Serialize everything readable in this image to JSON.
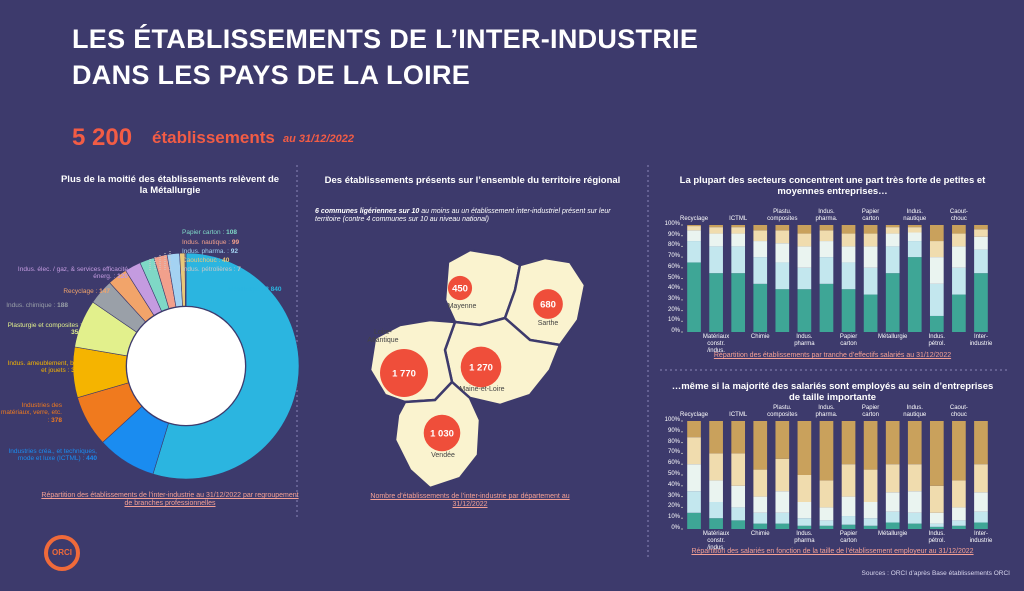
{
  "header": {
    "title_line1": "LES ÉTABLISSEMENTS DE L’INTER-INDUSTRIE",
    "title_line2": "DANS LES PAYS DE LA LOIRE",
    "count": "5 200",
    "count_unit": "établissements",
    "date": "au 31/12/2022"
  },
  "chart_data": [
    {
      "type": "pie",
      "title": "Plus de la moitié des établissements relèvent de la Métallurgie",
      "note": "Répartition des établissements de l’inter-industrie au 31/12/2022 par regroupement de branches professionnelles",
      "categories": [
        "Métallurgie :",
        "Industries créa., et techniques, mode et luxe (ICTML) :",
        "Industries des matériaux, verre, etc. :",
        "Indus. ameublement, bois et jouets :",
        "Plasturgie et composites :",
        "Indus. chimique :",
        "Recyclage :",
        "Indus. élec. / gaz, & services efficacité énerg. :",
        "Papier carton :",
        "Indus. nautique :",
        "Indus. pharma. :",
        "Caoutchouc :",
        "Indus. pétrolières :"
      ],
      "values": [
        2840,
        440,
        378,
        375,
        356,
        188,
        147,
        120,
        108,
        99,
        92,
        40,
        7
      ],
      "value_labels": [
        "2 840",
        "440",
        "378",
        "375",
        "356",
        "188",
        "147",
        "120",
        "108",
        "99",
        "92",
        "40",
        "7"
      ],
      "colors": [
        "#2bb5e0",
        "#1a8cf0",
        "#f07a1e",
        "#f5b400",
        "#e2f08c",
        "#9aa0a8",
        "#f2a46a",
        "#c49be0",
        "#7fd8c6",
        "#f2a08c",
        "#a4d2f2",
        "#e8c87a",
        "#c8c8c8"
      ]
    },
    {
      "type": "map",
      "title": "Des établissements présents sur l’ensemble du territoire régional",
      "subtitle_bold": "6 communes ligériennes sur 10",
      "subtitle": "au moins au un établissement inter-industriel présent sur leur territoire (contre 4 communes sur 10 au niveau national)",
      "note": "Nombre d’établissements de l’inter-industrie par département au 31/12/2022",
      "categories": [
        "Mayenne",
        "Sarthe",
        "Loire-\nAtlantique",
        "Maine-et-Loire",
        "Vendée"
      ],
      "values": [
        450,
        680,
        1770,
        1270,
        1030
      ],
      "value_labels": [
        "450",
        "680",
        "1 770",
        "1 270",
        "1 030"
      ],
      "color": "#ef4e3a"
    },
    {
      "type": "bar",
      "stacked": true,
      "title": "La plupart des secteurs concentrent une part très forte de petites et moyennes entreprises…",
      "note": "Répartition des établissements par tranche d’effectifs salariés au 31/12/2022",
      "categories": [
        "Recyclage",
        "Matériaux\nconstr. /indus.",
        "ICTML",
        "Chimie",
        "Plastu.\ncomposites",
        "Indus.\npharma",
        "Indus.\npharma.",
        "Papier\ncarton",
        "Papier\ncarton",
        "Métallurgie",
        "Indus.\nnautique",
        "Indus.\npétrol.",
        "Caout-\nchouc",
        "Inter-\nindustrie"
      ],
      "series": [
        {
          "color": "#3ea696",
          "values": [
            65,
            55,
            55,
            45,
            40,
            40,
            45,
            40,
            35,
            55,
            70,
            15,
            35,
            55
          ]
        },
        {
          "color": "#c3e7ee",
          "values": [
            20,
            25,
            25,
            25,
            25,
            20,
            25,
            25,
            25,
            25,
            15,
            30,
            25,
            22
          ]
        },
        {
          "color": "#eaf4f0",
          "values": [
            10,
            12,
            12,
            15,
            18,
            20,
            15,
            15,
            20,
            12,
            8,
            25,
            20,
            12
          ]
        },
        {
          "color": "#f0dcae",
          "values": [
            4,
            6,
            6,
            10,
            12,
            12,
            10,
            12,
            12,
            6,
            5,
            15,
            12,
            7
          ]
        },
        {
          "color": "#c9a15c",
          "values": [
            1,
            2,
            2,
            5,
            5,
            8,
            5,
            8,
            8,
            2,
            2,
            15,
            8,
            4
          ]
        }
      ],
      "ylim": [
        0,
        100
      ],
      "yticks": [
        {
          "value": 0,
          "label": "0%"
        },
        {
          "value": 10,
          "label": "10%"
        },
        {
          "value": 20,
          "label": "20%"
        },
        {
          "value": 30,
          "label": "30%"
        },
        {
          "value": 40,
          "label": "40%"
        },
        {
          "value": 50,
          "label": "50%"
        },
        {
          "value": 60,
          "label": "60%"
        },
        {
          "value": 70,
          "label": "70%"
        },
        {
          "value": 80,
          "label": "80%"
        },
        {
          "value": 90,
          "label": "90%"
        },
        {
          "value": 100,
          "label": "100%"
        }
      ],
      "grid": false
    },
    {
      "type": "bar",
      "stacked": true,
      "title": "…même si la majorité des salariés sont employés au sein d’entreprises de taille importante",
      "note": "Répartition des salariés en fonction de la taille de l’établissement employeur au 31/12/2022",
      "categories": [
        "Recyclage",
        "Matériaux\nconstr. /indus.",
        "ICTML",
        "Chimie",
        "Plastu.\ncomposites",
        "Indus.\npharma",
        "Indus.\npharma.",
        "Papier\ncarton",
        "Papier\ncarton",
        "Métallurgie",
        "Indus.\nnautique",
        "Indus.\npétrol.",
        "Caout-\nchouc",
        "Inter-\nindustrie"
      ],
      "series": [
        {
          "color": "#3ea696",
          "values": [
            15,
            10,
            8,
            5,
            5,
            3,
            3,
            4,
            3,
            6,
            5,
            2,
            3,
            6
          ]
        },
        {
          "color": "#c3e7ee",
          "values": [
            20,
            15,
            12,
            10,
            10,
            7,
            5,
            8,
            7,
            10,
            10,
            3,
            5,
            10
          ]
        },
        {
          "color": "#eaf4f0",
          "values": [
            25,
            20,
            20,
            15,
            20,
            15,
            12,
            18,
            15,
            18,
            20,
            10,
            12,
            18
          ]
        },
        {
          "color": "#f0dcae",
          "values": [
            25,
            25,
            30,
            25,
            30,
            25,
            25,
            30,
            30,
            26,
            25,
            25,
            25,
            26
          ]
        },
        {
          "color": "#c9a15c",
          "values": [
            15,
            30,
            30,
            45,
            35,
            50,
            55,
            40,
            45,
            40,
            40,
            60,
            55,
            40
          ]
        }
      ],
      "ylim": [
        0,
        100
      ],
      "yticks": [
        {
          "value": 0,
          "label": "0%"
        },
        {
          "value": 10,
          "label": "10%"
        },
        {
          "value": 20,
          "label": "20%"
        },
        {
          "value": 30,
          "label": "30%"
        },
        {
          "value": 40,
          "label": "40%"
        },
        {
          "value": 50,
          "label": "50%"
        },
        {
          "value": 60,
          "label": "60%"
        },
        {
          "value": 70,
          "label": "70%"
        },
        {
          "value": 80,
          "label": "80%"
        },
        {
          "value": 90,
          "label": "90%"
        },
        {
          "value": 100,
          "label": "100%"
        }
      ],
      "grid": false
    }
  ],
  "sources": "Sources : ORCI d’après Base établissements ORCI",
  "logo": "ORCI"
}
